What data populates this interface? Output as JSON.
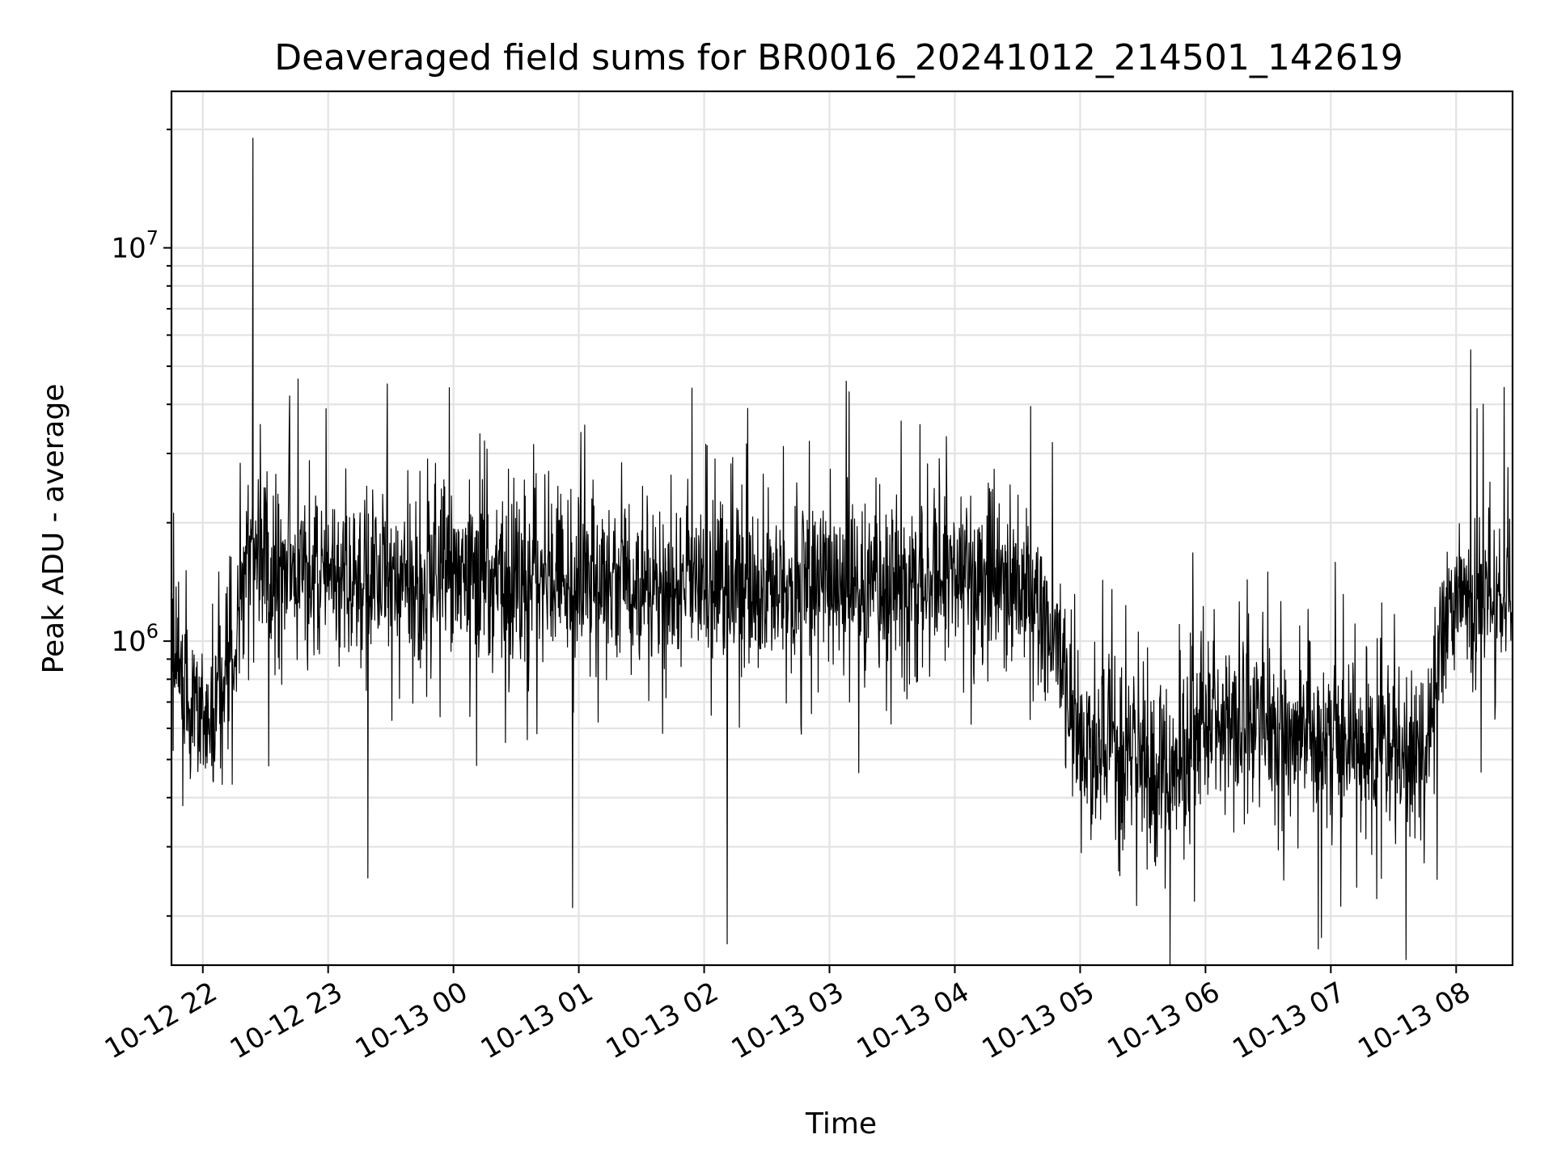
{
  "chart_data": {
    "type": "line",
    "title": "Deaveraged field sums for BR0016_20241012_214501_142619",
    "xlabel": "Time",
    "ylabel": "Peak ADU - average",
    "yscale": "log",
    "grid": true,
    "x_range": [
      "2024-10-12 21:45",
      "2024-10-13 08:27"
    ],
    "ylim": [
      150000,
      25000000
    ],
    "x_ticks": [
      "10-12 22",
      "10-12 23",
      "10-13 00",
      "10-13 01",
      "10-13 02",
      "10-13 03",
      "10-13 04",
      "10-13 05",
      "10-13 06",
      "10-13 07",
      "10-13 08"
    ],
    "y_ticks": [
      {
        "base": "10",
        "exp": "6",
        "value": 1000000
      },
      {
        "base": "10",
        "exp": "7",
        "value": 10000000
      }
    ],
    "series": [
      {
        "color": "#000000",
        "level_profile": {
          "times": [
            "2024-10-12 21:45",
            "2024-10-12 22:00",
            "2024-10-12 22:10",
            "2024-10-12 22:20",
            "2024-10-12 23:00",
            "2024-10-13 00:00",
            "2024-10-13 02:00",
            "2024-10-13 04:30",
            "2024-10-13 04:45",
            "2024-10-13 05:00",
            "2024-10-13 05:40",
            "2024-10-13 06:00",
            "2024-10-13 07:00",
            "2024-10-13 07:45",
            "2024-10-13 07:55",
            "2024-10-13 08:27"
          ],
          "values": [
            900000,
            600000,
            700000,
            1500000,
            1400000,
            1450000,
            1400000,
            1400000,
            1100000,
            600000,
            450000,
            650000,
            550000,
            500000,
            1200000,
            1300000
          ]
        },
        "spikes": [
          {
            "time": "2024-10-12 22:24",
            "value": 19000000
          },
          {
            "time": "2024-10-12 22:59",
            "value": 3900000
          },
          {
            "time": "2024-10-13 08:07",
            "value": 5500000
          },
          {
            "time": "2024-10-13 08:10",
            "value": 3900000
          },
          {
            "time": "2024-10-12 23:19",
            "value": 250000
          },
          {
            "time": "2024-10-13 00:57",
            "value": 210000
          },
          {
            "time": "2024-10-13 02:11",
            "value": 170000
          },
          {
            "time": "2024-10-13 05:43",
            "value": 150000
          },
          {
            "time": "2024-10-13 06:54",
            "value": 165000
          },
          {
            "time": "2024-10-13 07:36",
            "value": 155000
          }
        ]
      }
    ]
  }
}
